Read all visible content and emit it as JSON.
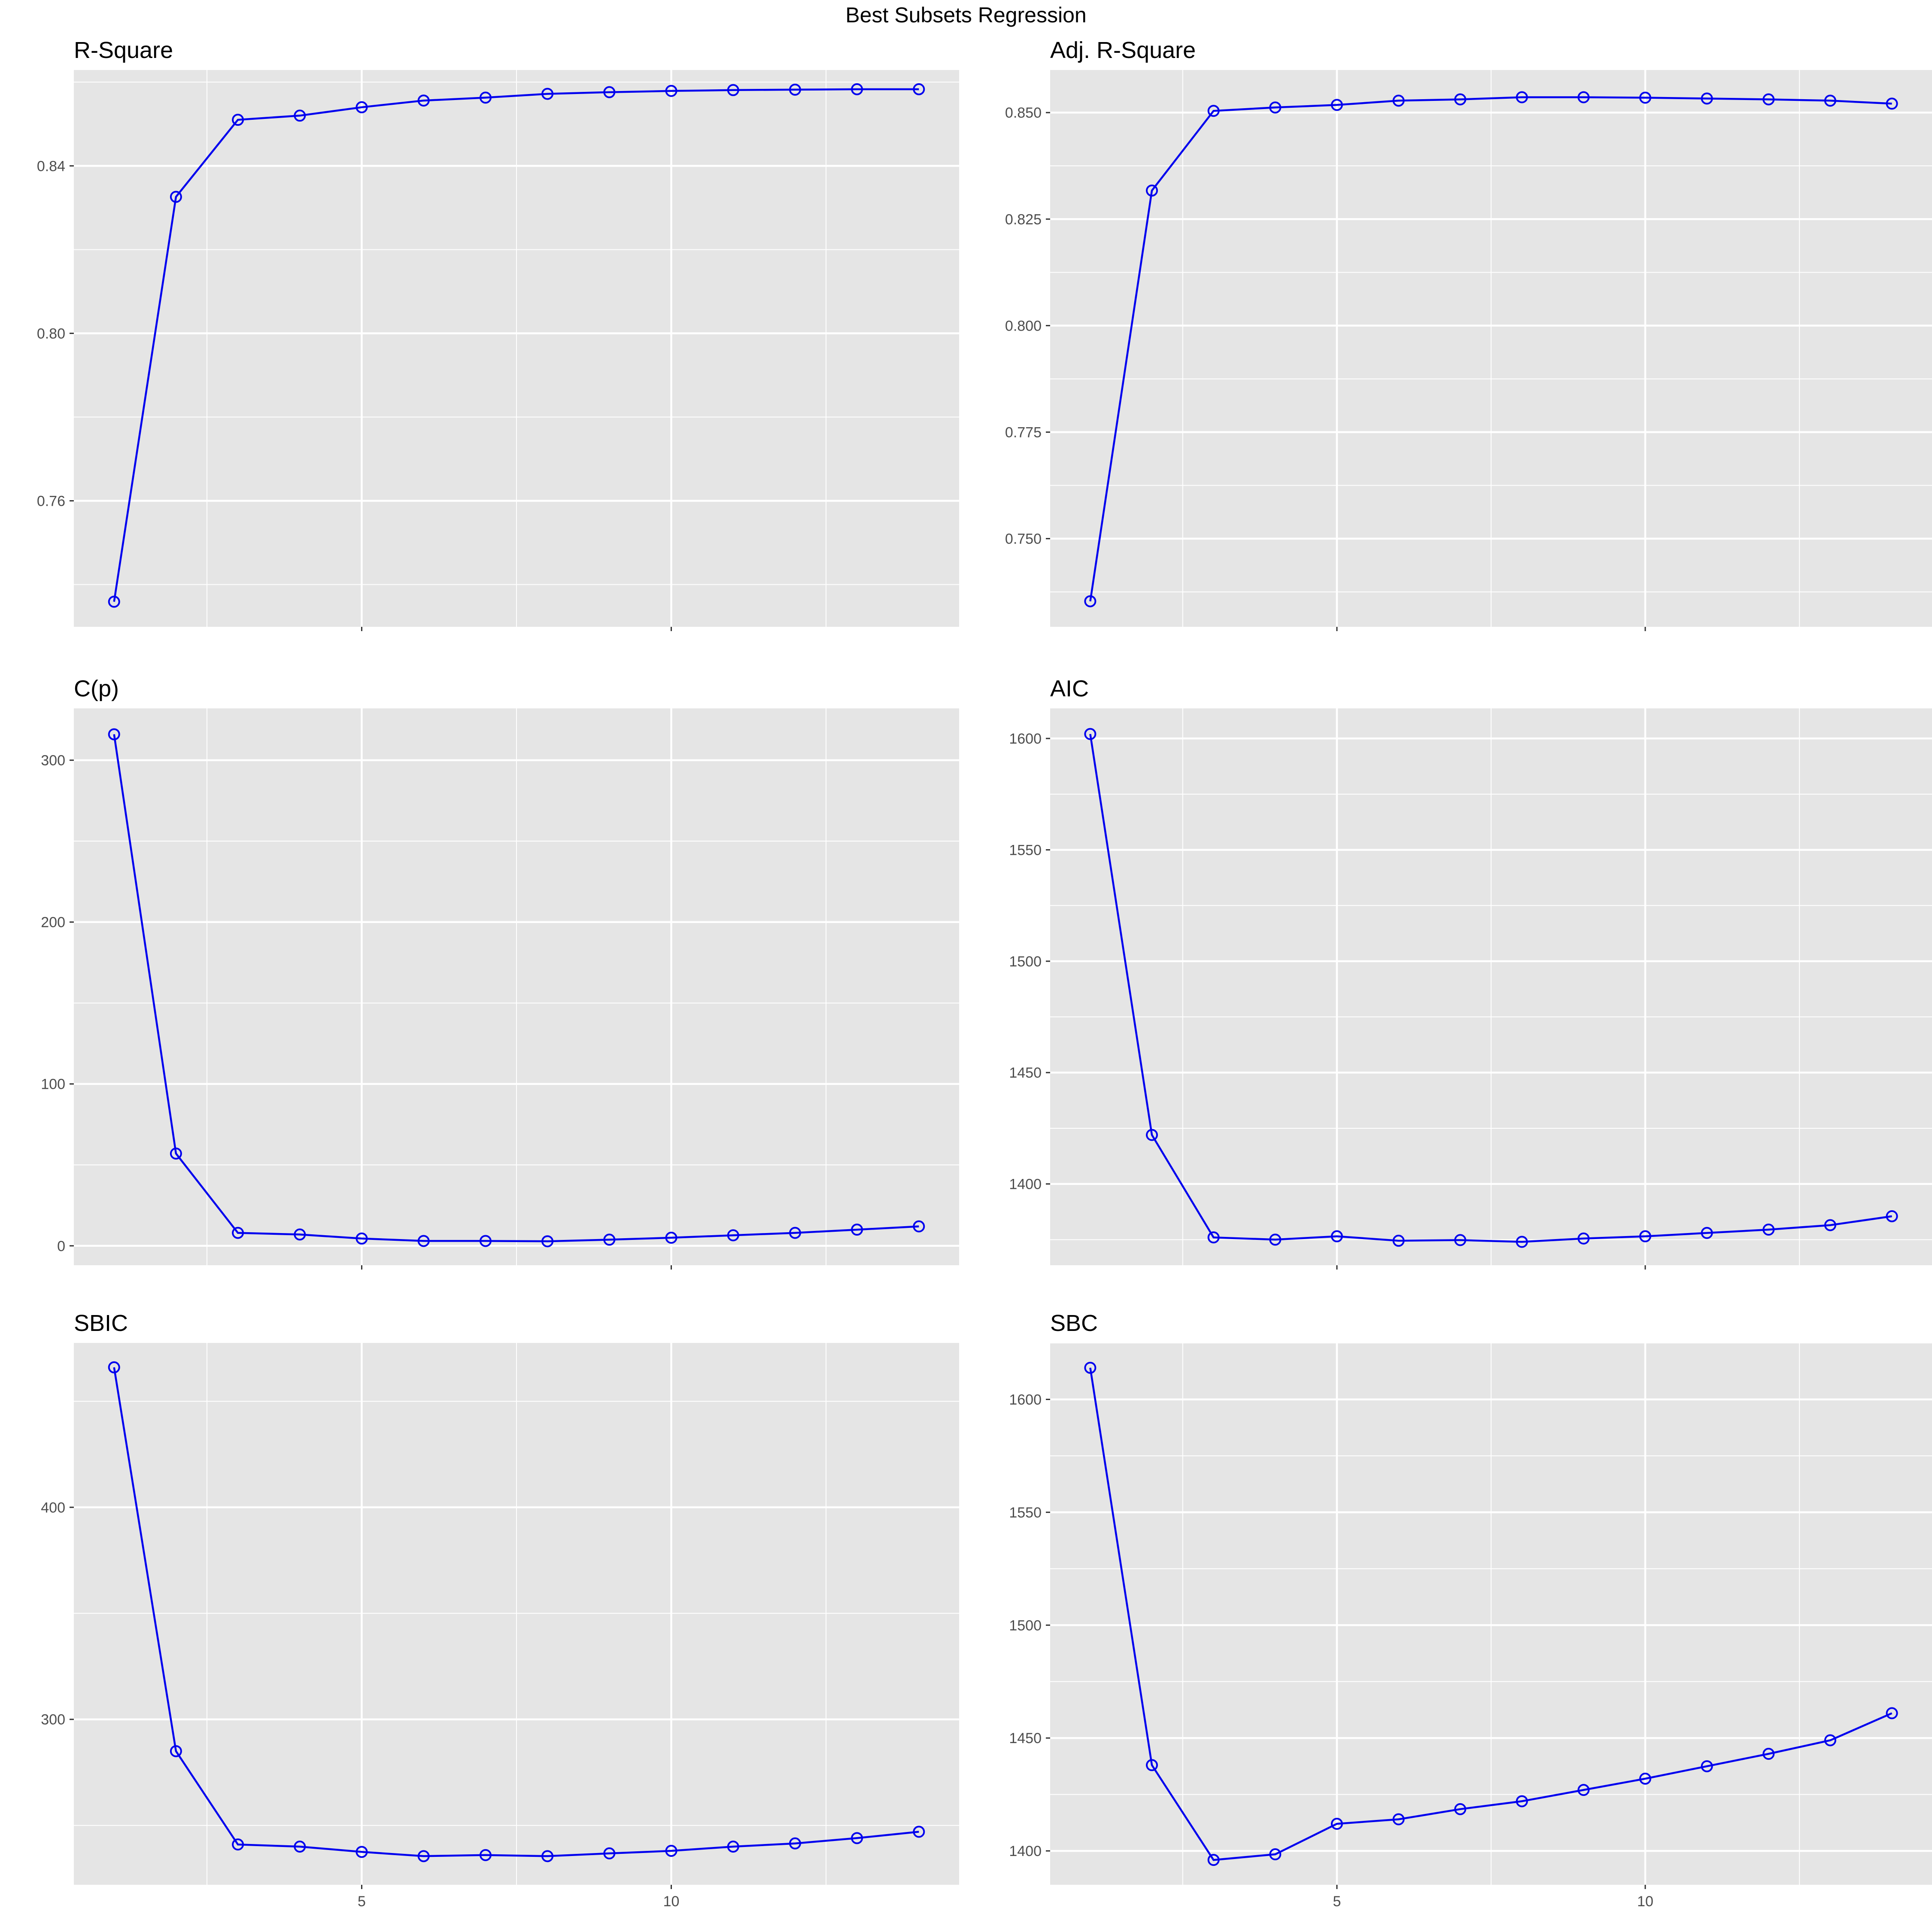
{
  "figure": {
    "title": "Best Subsets Regression"
  },
  "colors": {
    "line": "#0000ee",
    "panel_bg": "#e5e5e5",
    "grid": "#ffffff"
  },
  "chart_data": [
    {
      "type": "line",
      "title": "R-Square",
      "xlabel": "",
      "ylabel": "",
      "x": [
        1,
        2,
        3,
        4,
        5,
        6,
        7,
        8,
        9,
        10,
        11,
        12,
        13,
        14
      ],
      "values": [
        0.7359,
        0.8326,
        0.851,
        0.852,
        0.854,
        0.8556,
        0.8563,
        0.8572,
        0.8576,
        0.8579,
        0.8581,
        0.8582,
        0.8583,
        0.8583
      ],
      "xlim": [
        0.35,
        14.65
      ],
      "ylim": [
        0.7299,
        0.8629
      ],
      "yticks": [
        0.76,
        0.8,
        0.84
      ],
      "yticklabels": [
        "0.76",
        "0.80",
        "0.84"
      ],
      "xticks": [
        5,
        10
      ],
      "xticklabels": [],
      "grid": true
    },
    {
      "type": "line",
      "title": "Adj. R-Square",
      "xlabel": "",
      "ylabel": "",
      "x": [
        1,
        2,
        3,
        4,
        5,
        6,
        7,
        8,
        9,
        10,
        11,
        12,
        13,
        14
      ],
      "values": [
        0.7353,
        0.8317,
        0.8504,
        0.8512,
        0.8518,
        0.8528,
        0.8531,
        0.8536,
        0.8536,
        0.8535,
        0.8533,
        0.8531,
        0.8528,
        0.8521
      ],
      "xlim": [
        0.35,
        14.65
      ],
      "ylim": [
        0.7293,
        0.86
      ],
      "yticks": [
        0.75,
        0.775,
        0.8,
        0.825,
        0.85
      ],
      "yticklabels": [
        "0.750",
        "0.775",
        "0.800",
        "0.825",
        "0.850"
      ],
      "xticks": [
        5,
        10
      ],
      "xticklabels": [],
      "grid": true
    },
    {
      "type": "line",
      "title": "C(p)",
      "xlabel": "",
      "ylabel": "",
      "x": [
        1,
        2,
        3,
        4,
        5,
        6,
        7,
        8,
        9,
        10,
        11,
        12,
        13,
        14
      ],
      "values": [
        316,
        57,
        8,
        7,
        4.5,
        3,
        3,
        2.8,
        3.8,
        5,
        6.5,
        8,
        10,
        12
      ],
      "xlim": [
        0.35,
        14.65
      ],
      "ylim": [
        -12,
        332
      ],
      "yticks": [
        0,
        100,
        200,
        300
      ],
      "yticklabels": [
        "0",
        "100",
        "200",
        "300"
      ],
      "xticks": [
        5,
        10
      ],
      "xticklabels": [],
      "grid": true
    },
    {
      "type": "line",
      "title": "AIC",
      "xlabel": "",
      "ylabel": "",
      "x": [
        1,
        2,
        3,
        4,
        5,
        6,
        7,
        8,
        9,
        10,
        11,
        12,
        13,
        14
      ],
      "values": [
        1602,
        1422,
        1376,
        1375,
        1376.5,
        1374.5,
        1374.8,
        1374,
        1375.5,
        1376.5,
        1378,
        1379.5,
        1381.5,
        1385.5
      ],
      "xlim": [
        0.35,
        14.65
      ],
      "ylim": [
        1363.5,
        1613.5
      ],
      "yticks": [
        1400,
        1450,
        1500,
        1550,
        1600
      ],
      "yticklabels": [
        "1400",
        "1450",
        "1500",
        "1550",
        "1600"
      ],
      "xticks": [
        5,
        10
      ],
      "xticklabels": [],
      "grid": true
    },
    {
      "type": "line",
      "title": "SBIC",
      "xlabel": "",
      "ylabel": "",
      "x": [
        1,
        2,
        3,
        4,
        5,
        6,
        7,
        8,
        9,
        10,
        11,
        12,
        13,
        14
      ],
      "values": [
        466,
        285,
        241,
        240,
        237.5,
        235.5,
        236,
        235.5,
        236.8,
        238,
        240,
        241.5,
        244,
        247
      ],
      "xlim": [
        0.35,
        14.65
      ],
      "ylim": [
        222,
        477.5
      ],
      "yticks": [
        300,
        400
      ],
      "yticklabels": [
        "300",
        "400"
      ],
      "xticks": [
        5,
        10
      ],
      "xticklabels": [
        "5",
        "10"
      ],
      "grid": true
    },
    {
      "type": "line",
      "title": "SBC",
      "xlabel": "",
      "ylabel": "",
      "x": [
        1,
        2,
        3,
        4,
        5,
        6,
        7,
        8,
        9,
        10,
        11,
        12,
        13,
        14
      ],
      "values": [
        1614,
        1438,
        1396,
        1398.5,
        1412,
        1414,
        1418.5,
        1422,
        1427,
        1432,
        1437.5,
        1443,
        1449,
        1461
      ],
      "xlim": [
        0.35,
        14.65
      ],
      "ylim": [
        1385,
        1625
      ],
      "yticks": [
        1400,
        1450,
        1500,
        1550,
        1600
      ],
      "yticklabels": [
        "1400",
        "1450",
        "1500",
        "1550",
        "1600"
      ],
      "xticks": [
        5,
        10
      ],
      "xticklabels": [
        "5",
        "10"
      ],
      "grid": true
    }
  ]
}
